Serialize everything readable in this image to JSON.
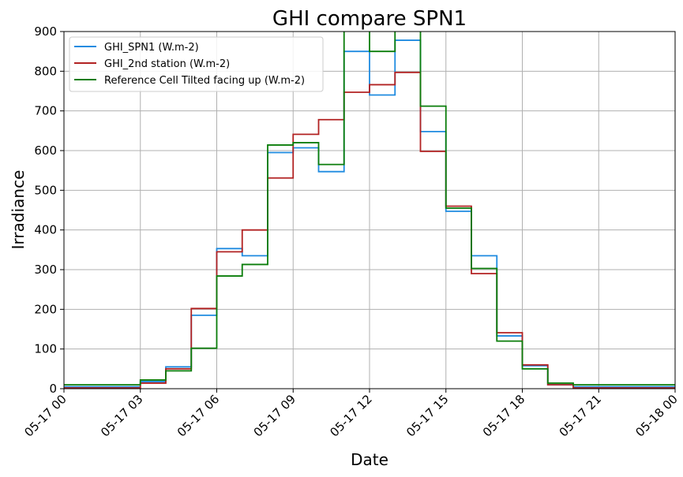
{
  "chart_data": {
    "type": "line",
    "title": "GHI compare SPN1",
    "xlabel": "Date",
    "ylabel": "Irradiance",
    "xlim": [
      "2024-05-17T00:00",
      "2024-05-18T00:00"
    ],
    "ylim": [
      0,
      900
    ],
    "x_ticks": [
      "05-17 00",
      "05-17 03",
      "05-17 06",
      "05-17 09",
      "05-17 12",
      "05-17 15",
      "05-17 18",
      "05-17 21",
      "05-18 00"
    ],
    "y_ticks": [
      0,
      100,
      200,
      300,
      400,
      500,
      600,
      700,
      800,
      900
    ],
    "grid": true,
    "legend_position": "top-left",
    "step": "post",
    "x": [
      "00:00",
      "01:00",
      "02:00",
      "03:00",
      "04:00",
      "05:00",
      "06:00",
      "07:00",
      "08:00",
      "09:00",
      "10:00",
      "11:00",
      "12:00",
      "13:00",
      "14:00",
      "15:00",
      "16:00",
      "17:00",
      "18:00",
      "19:00",
      "20:00",
      "21:00",
      "22:00",
      "23:00",
      "24:00"
    ],
    "series": [
      {
        "name": "GHI_SPN1 (W.m-2)",
        "color": "#1f8be0",
        "values": [
          5,
          5,
          5,
          18,
          55,
          185,
          353,
          335,
          595,
          607,
          547,
          850,
          740,
          878,
          648,
          447,
          335,
          133,
          58,
          10,
          5,
          5,
          5,
          5,
          5
        ]
      },
      {
        "name": "GHI_2nd station (W.m-2)",
        "color": "#b22222",
        "values": [
          2,
          2,
          2,
          14,
          50,
          202,
          345,
          400,
          531,
          641,
          678,
          747,
          766,
          797,
          598,
          460,
          290,
          141,
          60,
          10,
          2,
          2,
          2,
          2,
          2
        ]
      },
      {
        "name": "Reference Cell Tilted facing up (W.m-2)",
        "color": "#0a7d0a",
        "values": [
          10,
          10,
          10,
          22,
          45,
          102,
          284,
          313,
          614,
          620,
          565,
          960,
          850,
          960,
          712,
          455,
          303,
          120,
          50,
          14,
          10,
          10,
          10,
          10,
          10
        ]
      }
    ]
  }
}
